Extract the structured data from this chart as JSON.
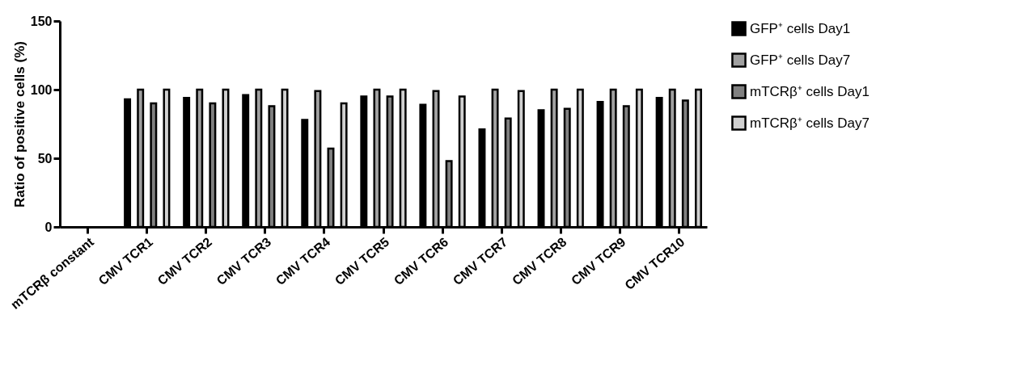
{
  "chart_data": {
    "type": "bar",
    "ylabel": "Ratio of positive cells (%)",
    "categories": [
      "mTCRβ constant",
      "CMV TCR1",
      "CMV TCR2",
      "CMV TCR3",
      "CMV TCR4",
      "CMV TCR5",
      "CMV TCR6",
      "CMV TCR7",
      "CMV TCR8",
      "CMV TCR9",
      "CMV TCR10"
    ],
    "series": [
      {
        "name": "GFP⁺ cells Day1",
        "color": "#000000",
        "values": [
          null,
          93,
          94,
          96,
          78,
          95,
          89,
          71,
          85,
          91,
          94
        ]
      },
      {
        "name": "GFP⁺ cells Day7",
        "color": "#a0a0a0",
        "values": [
          null,
          100,
          100,
          100,
          99,
          100,
          99,
          100,
          100,
          100,
          100
        ]
      },
      {
        "name": "mTCRβ⁺ cells Day1",
        "color": "#808080",
        "values": [
          null,
          90,
          90,
          88,
          57,
          95,
          48,
          79,
          86,
          88,
          92
        ]
      },
      {
        "name": "mTCRβ⁺ cells Day7",
        "color": "#d0d0d0",
        "values": [
          null,
          100,
          100,
          100,
          90,
          100,
          95,
          99,
          100,
          100,
          100
        ]
      }
    ],
    "ylim": [
      0,
      150
    ],
    "yticks": [
      0,
      50,
      100,
      150
    ],
    "grid": false,
    "legend": "top right"
  }
}
